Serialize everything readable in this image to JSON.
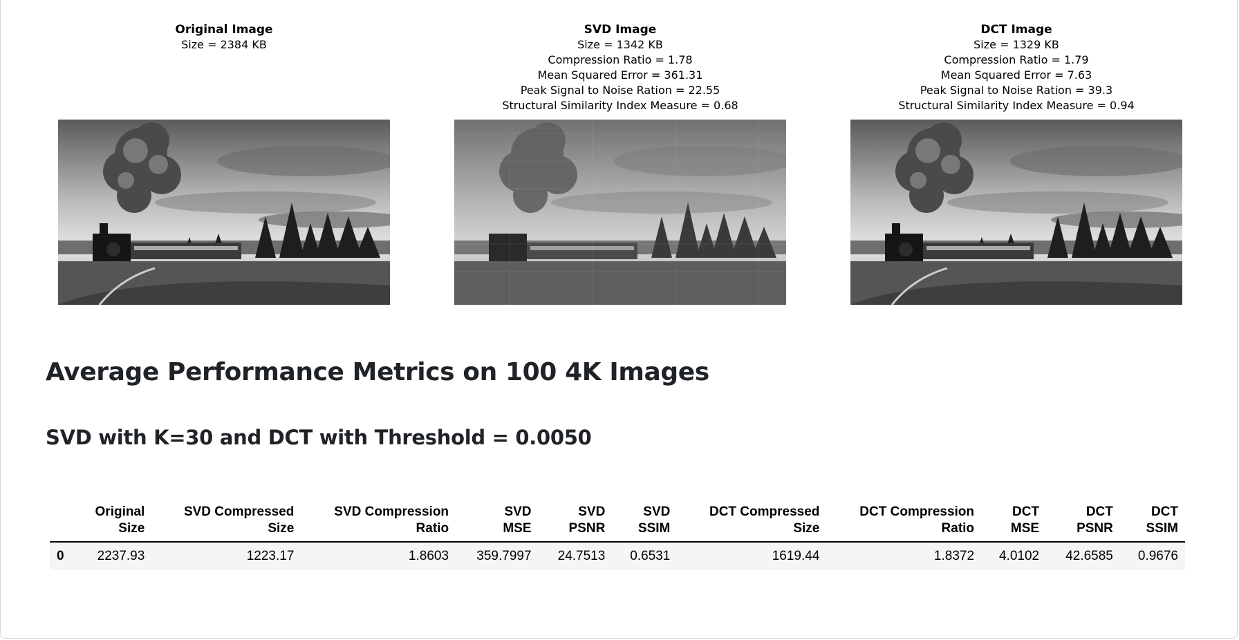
{
  "panels": {
    "original": {
      "title": "Original Image",
      "lines": [
        "Size = 2384 KB"
      ]
    },
    "svd": {
      "title": "SVD Image",
      "lines": [
        "Size = 1342 KB",
        "Compression Ratio = 1.78",
        "Mean Squared Error = 361.31",
        "Peak Signal to Noise Ration = 22.55",
        "Structural Similarity Index Measure = 0.68"
      ]
    },
    "dct": {
      "title": "DCT Image",
      "lines": [
        "Size = 1329 KB",
        "Compression Ratio = 1.79",
        "Mean Squared Error = 7.63",
        "Peak Signal to Noise Ration = 39.3",
        "Structural Similarity Index Measure = 0.94"
      ]
    }
  },
  "heading": "Average Performance Metrics on 100 4K Images",
  "subheading": "SVD with K=30 and DCT with Threshold = 0.0050",
  "table": {
    "headers": [
      "",
      "Original\nSize",
      "SVD Compressed\nSize",
      "SVD Compression\nRatio",
      "SVD\nMSE",
      "SVD\nPSNR",
      "SVD\nSSIM",
      "DCT Compressed\nSize",
      "DCT Compression\nRatio",
      "DCT\nMSE",
      "DCT\nPSNR",
      "DCT\nSSIM"
    ],
    "rows": [
      [
        "0",
        "2237.93",
        "1223.17",
        "1.8603",
        "359.7997",
        "24.7513",
        "0.6531",
        "1619.44",
        "1.8372",
        "4.0102",
        "42.6585",
        "0.9676"
      ]
    ]
  }
}
